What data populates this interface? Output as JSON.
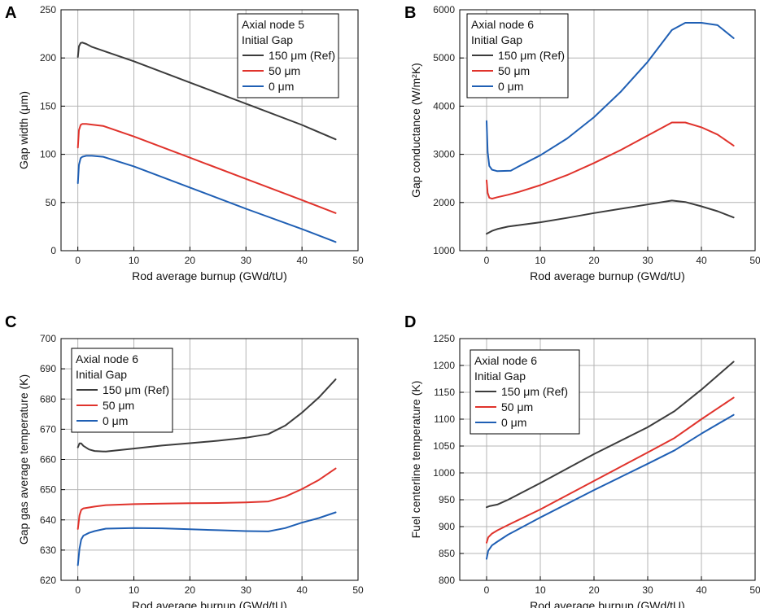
{
  "figure": {
    "panels": [
      "A",
      "B",
      "C",
      "D"
    ]
  },
  "chart_data": [
    {
      "panel": "A",
      "type": "line",
      "xlabel": "Rod average burnup (GWd/tU)",
      "ylabel": "Gap width (μm)",
      "xlim": [
        -3,
        50
      ],
      "ylim": [
        0,
        250
      ],
      "xticks": [
        0,
        10,
        20,
        30,
        40,
        50
      ],
      "yticks": [
        0,
        50,
        100,
        150,
        200,
        250
      ],
      "grid": true,
      "legend": {
        "position": "top-right",
        "header": [
          "Axial node 5",
          "Initial Gap"
        ],
        "entries": [
          "150 μm (Ref)",
          "50 μm",
          "0 μm"
        ]
      },
      "series": [
        {
          "name": "150 μm (Ref)",
          "color": "#3c3c3c",
          "x": [
            0,
            0.2,
            0.5,
            0.8,
            1.5,
            2.5,
            4.5,
            10,
            20,
            30,
            40,
            46
          ],
          "y": [
            201,
            212,
            215.5,
            216,
            214.5,
            211.5,
            207.5,
            196.5,
            174.5,
            152.5,
            130.5,
            115.5
          ]
        },
        {
          "name": "50 μm",
          "color": "#e0332c",
          "x": [
            0,
            0.2,
            0.5,
            0.8,
            1.5,
            2.5,
            4.5,
            10,
            20,
            30,
            40,
            46
          ],
          "y": [
            107,
            125,
            130.5,
            131.5,
            131.5,
            130.8,
            129.5,
            118.5,
            96.5,
            74.5,
            52.5,
            39
          ]
        },
        {
          "name": "0 μm",
          "color": "#1f5fb4",
          "x": [
            0,
            0.2,
            0.5,
            0.8,
            1.5,
            2.5,
            4.5,
            10,
            20,
            30,
            40,
            46
          ],
          "y": [
            70,
            89,
            96,
            97.5,
            98.5,
            98.5,
            97.5,
            87.5,
            65.5,
            43.5,
            22.5,
            9
          ]
        }
      ]
    },
    {
      "panel": "B",
      "type": "line",
      "xlabel": "Rod average burnup (GWd/tU)",
      "ylabel": "Gap conductance (W/m²K)",
      "xlim": [
        -5,
        50
      ],
      "ylim": [
        1000,
        6000
      ],
      "xticks": [
        0,
        10,
        20,
        30,
        40,
        50
      ],
      "yticks": [
        1000,
        2000,
        3000,
        4000,
        5000,
        6000
      ],
      "grid": true,
      "legend": {
        "position": "top-left",
        "header": [
          "Axial node 6",
          "Initial Gap"
        ],
        "entries": [
          "150 μm (Ref)",
          "50 μm",
          "0 μm"
        ]
      },
      "series": [
        {
          "name": "150 μm (Ref)",
          "color": "#3c3c3c",
          "x": [
            0,
            0.5,
            1,
            2,
            4,
            6,
            10,
            15,
            20,
            25,
            30,
            34.5,
            37,
            40,
            43,
            46
          ],
          "y": [
            1350,
            1380,
            1410,
            1450,
            1500,
            1530,
            1590,
            1680,
            1780,
            1870,
            1960,
            2040,
            2010,
            1920,
            1820,
            1690
          ]
        },
        {
          "name": "50 μm",
          "color": "#e0332c",
          "x": [
            0,
            0.2,
            0.5,
            1,
            2,
            4,
            6,
            10,
            15,
            20,
            25,
            30,
            34.5,
            37,
            40,
            43,
            46
          ],
          "y": [
            2460,
            2200,
            2100,
            2080,
            2110,
            2160,
            2220,
            2360,
            2570,
            2820,
            3090,
            3390,
            3660,
            3660,
            3560,
            3410,
            3180
          ]
        },
        {
          "name": "0 μm",
          "color": "#1f5fb4",
          "x": [
            0,
            0.2,
            0.5,
            1,
            2,
            4.5,
            6,
            10,
            15,
            20,
            25,
            30,
            34.5,
            37,
            40,
            43,
            46
          ],
          "y": [
            3690,
            3050,
            2760,
            2680,
            2650,
            2660,
            2750,
            2980,
            3330,
            3770,
            4300,
            4920,
            5580,
            5730,
            5730,
            5680,
            5410
          ]
        }
      ]
    },
    {
      "panel": "C",
      "type": "line",
      "xlabel": "Rod average burnup (GWd/tU)",
      "ylabel": "Gap gas average temperature (K)",
      "xlim": [
        -3,
        50
      ],
      "ylim": [
        620,
        700
      ],
      "xticks": [
        0,
        10,
        20,
        30,
        40,
        50
      ],
      "yticks": [
        620,
        630,
        640,
        650,
        660,
        670,
        680,
        690,
        700
      ],
      "grid": true,
      "legend": {
        "position": "top-left",
        "header": [
          "Axial node 6",
          "Initial Gap"
        ],
        "entries": [
          "150 μm (Ref)",
          "50 μm",
          "0 μm"
        ]
      },
      "series": [
        {
          "name": "150 μm (Ref)",
          "color": "#3c3c3c",
          "x": [
            0,
            0.3,
            0.6,
            1,
            2,
            3,
            5,
            10,
            15,
            20,
            25,
            30,
            34,
            37,
            40,
            43,
            46
          ],
          "y": [
            664,
            665.3,
            665.3,
            664.5,
            663.3,
            662.8,
            662.6,
            663.6,
            664.6,
            665.4,
            666.2,
            667.2,
            668.4,
            671.2,
            675.5,
            680.5,
            686.5
          ]
        },
        {
          "name": "50 μm",
          "color": "#e0332c",
          "x": [
            0,
            0.3,
            0.6,
            1,
            2,
            3,
            5,
            10,
            15,
            20,
            25,
            30,
            34,
            37,
            40,
            43,
            46
          ],
          "y": [
            637,
            641.5,
            643.3,
            643.8,
            644.1,
            644.4,
            644.9,
            645.2,
            645.4,
            645.5,
            645.6,
            645.8,
            646.1,
            647.7,
            650.2,
            653.2,
            657
          ]
        },
        {
          "name": "0 μm",
          "color": "#1f5fb4",
          "x": [
            0,
            0.3,
            0.6,
            1,
            2,
            3,
            5,
            10,
            15,
            20,
            25,
            30,
            34,
            37,
            40,
            43,
            46
          ],
          "y": [
            625,
            630.5,
            633.5,
            634.8,
            635.7,
            636.3,
            637.1,
            637.3,
            637.2,
            636.9,
            636.6,
            636.3,
            636.2,
            637.3,
            639.1,
            640.6,
            642.5
          ]
        }
      ]
    },
    {
      "panel": "D",
      "type": "line",
      "xlabel": "Rod average burnup (GWd/tU)",
      "ylabel": "Fuel centerline temperature (K)",
      "xlim": [
        -5,
        50
      ],
      "ylim": [
        800,
        1250
      ],
      "xticks": [
        0,
        10,
        20,
        30,
        40,
        50
      ],
      "yticks": [
        800,
        850,
        900,
        950,
        1000,
        1050,
        1100,
        1150,
        1200,
        1250
      ],
      "grid": true,
      "legend": {
        "position": "top-left",
        "header": [
          "Axial node 6",
          "Initial Gap"
        ],
        "entries": [
          "150 μm (Ref)",
          "50 μm",
          "0 μm"
        ]
      },
      "series": [
        {
          "name": "150 μm (Ref)",
          "color": "#3c3c3c",
          "x": [
            0,
            0.5,
            2,
            4,
            10,
            20,
            30,
            35,
            40,
            46
          ],
          "y": [
            936,
            938,
            941,
            950,
            981,
            1035,
            1085,
            1115,
            1155,
            1207
          ]
        },
        {
          "name": "50 μm",
          "color": "#e0332c",
          "x": [
            0,
            0.3,
            1,
            2,
            4,
            10,
            20,
            30,
            35,
            40,
            46
          ],
          "y": [
            870,
            880,
            887,
            893,
            903,
            932,
            985,
            1038,
            1065,
            1100,
            1140
          ]
        },
        {
          "name": "0 μm",
          "color": "#1f5fb4",
          "x": [
            0,
            0.3,
            1,
            2,
            4,
            10,
            20,
            30,
            35,
            40,
            46
          ],
          "y": [
            840,
            855,
            865,
            872,
            885,
            917,
            968,
            1017,
            1042,
            1073,
            1108
          ]
        }
      ]
    }
  ]
}
